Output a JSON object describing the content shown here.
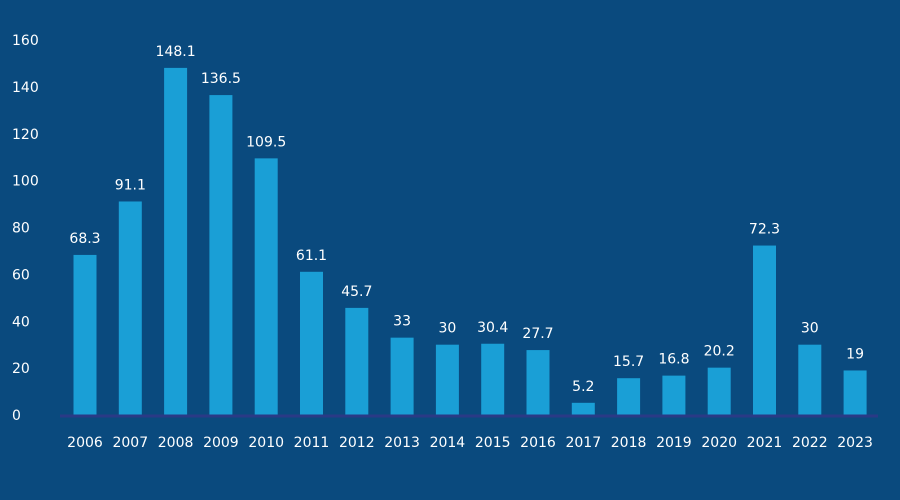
{
  "chart_data": {
    "type": "bar",
    "title": "",
    "xlabel": "",
    "ylabel": "",
    "ylim": [
      0,
      160
    ],
    "yticks": [
      0,
      20,
      40,
      60,
      80,
      100,
      120,
      140,
      160
    ],
    "grid": false,
    "categories": [
      "2006",
      "2007",
      "2008",
      "2009",
      "2010",
      "2011",
      "2012",
      "2013",
      "2014",
      "2015",
      "2016",
      "2017",
      "2018",
      "2019",
      "2020",
      "2021",
      "2022",
      "2023"
    ],
    "values": [
      68.3,
      91.1,
      148.1,
      136.5,
      109.5,
      61.1,
      45.7,
      33,
      30,
      30.4,
      27.7,
      5.2,
      15.7,
      16.8,
      20.2,
      72.3,
      30,
      19
    ],
    "value_labels": [
      "68.3",
      "91.1",
      "148.1",
      "136.5",
      "109.5",
      "61.1",
      "45.7",
      "33",
      "30",
      "30.4",
      "27.7",
      "5.2",
      "15.7",
      "16.8",
      "20.2",
      "72.3",
      "30",
      "19"
    ],
    "colors": {
      "background": "#0a4a7e",
      "bar": "#1a9fd6",
      "baseline": "#2a3a86",
      "text": "#ffffff"
    }
  }
}
